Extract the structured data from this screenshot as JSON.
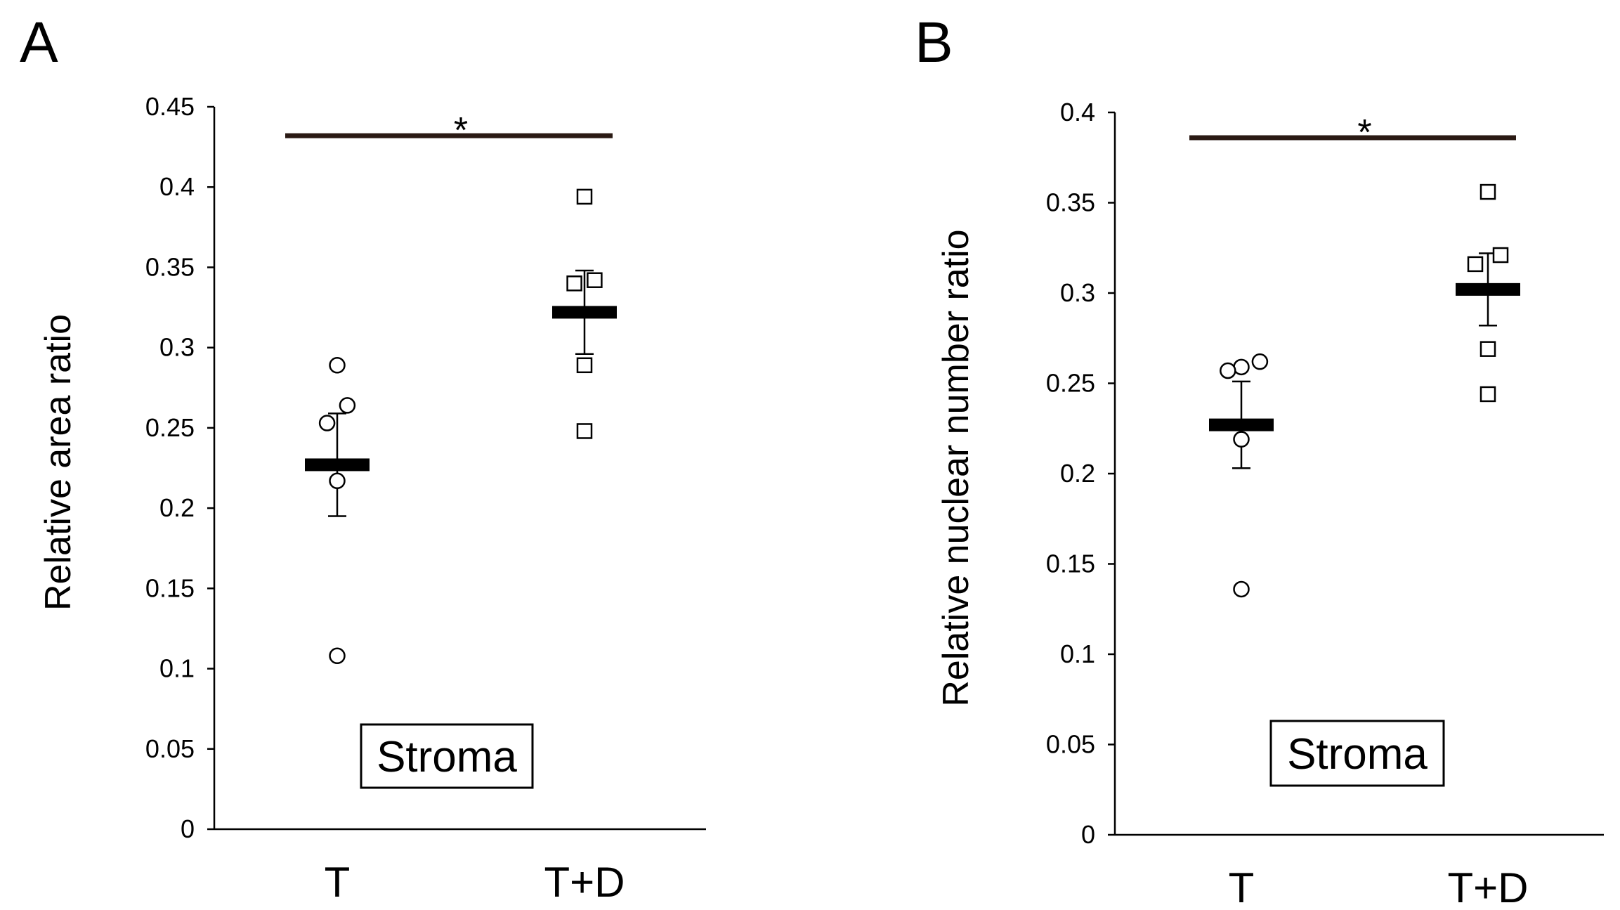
{
  "chart_data": [
    {
      "type": "scatter",
      "panel_label": "A",
      "ylabel": "Relative area ratio",
      "ylim": [
        0,
        0.45
      ],
      "yticks": [
        0,
        0.05,
        0.1,
        0.15,
        0.2,
        0.25,
        0.3,
        0.35,
        0.4,
        0.45
      ],
      "ytick_labels": [
        "0",
        "0.05",
        "0.1",
        "0.15",
        "0.2",
        "0.25",
        "0.3",
        "0.35",
        "0.4",
        "0.45"
      ],
      "categories": [
        "T",
        "T+D"
      ],
      "groups": [
        {
          "name": "T",
          "marker": "circle",
          "mean": 0.227,
          "error": 0.032,
          "points": [
            {
              "offset": 0,
              "value": 0.289
            },
            {
              "offset": 0.6,
              "value": 0.264
            },
            {
              "offset": -0.6,
              "value": 0.253
            },
            {
              "offset": 0,
              "value": 0.217
            },
            {
              "offset": 0,
              "value": 0.108
            }
          ]
        },
        {
          "name": "T+D",
          "marker": "square",
          "mean": 0.322,
          "error": 0.026,
          "points": [
            {
              "offset": 0,
              "value": 0.394
            },
            {
              "offset": 0.6,
              "value": 0.342
            },
            {
              "offset": -0.6,
              "value": 0.34
            },
            {
              "offset": 0,
              "value": 0.289
            },
            {
              "offset": 0,
              "value": 0.248
            }
          ]
        }
      ],
      "significance": {
        "marker": "*",
        "value": 0.432
      },
      "annotation": "Stroma"
    },
    {
      "type": "scatter",
      "panel_label": "B",
      "ylabel": "Relative nuclear number ratio",
      "ylim": [
        0,
        0.4
      ],
      "yticks": [
        0,
        0.05,
        0.1,
        0.15,
        0.2,
        0.25,
        0.3,
        0.35,
        0.4
      ],
      "ytick_labels": [
        "0",
        "0.05",
        "0.1",
        "0.15",
        "0.2",
        "0.25",
        "0.3",
        "0.35",
        "0.4"
      ],
      "categories": [
        "T",
        "T+D"
      ],
      "groups": [
        {
          "name": "T",
          "marker": "circle",
          "mean": 0.227,
          "error": 0.024,
          "points": [
            {
              "offset": 1.1,
              "value": 0.262
            },
            {
              "offset": 0,
              "value": 0.259
            },
            {
              "offset": -0.8,
              "value": 0.257
            },
            {
              "offset": 0,
              "value": 0.219
            },
            {
              "offset": 0,
              "value": 0.136
            }
          ]
        },
        {
          "name": "T+D",
          "marker": "square",
          "mean": 0.302,
          "error": 0.02,
          "points": [
            {
              "offset": 0,
              "value": 0.356
            },
            {
              "offset": 0.75,
              "value": 0.321
            },
            {
              "offset": -0.75,
              "value": 0.316
            },
            {
              "offset": 0,
              "value": 0.269
            },
            {
              "offset": 0,
              "value": 0.244
            }
          ]
        }
      ],
      "significance": {
        "marker": "*",
        "value": 0.386
      },
      "annotation": "Stroma"
    }
  ]
}
